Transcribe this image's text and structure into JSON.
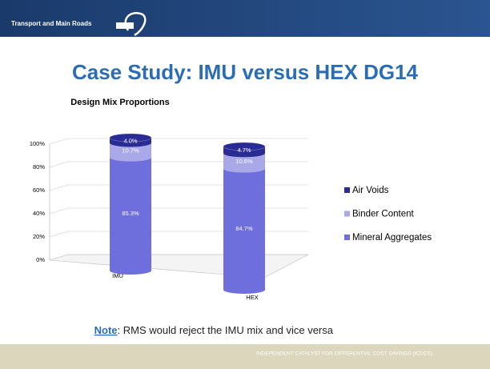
{
  "header": "Transport and Main Roads",
  "title": "Case Study: IMU versus HEX DG14",
  "chart_data": {
    "type": "stacked_cylinder",
    "title": "Design Mix Proportions",
    "categories": [
      "IMU",
      "HEX"
    ],
    "series": [
      {
        "name": "Mineral Aggregates",
        "color": "#6e6edc",
        "values": [
          85.3,
          84.7
        ],
        "value_labels": [
          "85.3%",
          "84.7%"
        ]
      },
      {
        "name": "Binder Content",
        "color": "#a9a9ea",
        "values": [
          10.7,
          10.6
        ],
        "value_labels": [
          "10.7%",
          "10.6%"
        ]
      },
      {
        "name": "Air Voids",
        "color": "#2b2b96",
        "values": [
          4,
          4.7
        ],
        "value_labels": [
          "4.0%",
          "4.7%"
        ]
      }
    ],
    "ylim": [
      0,
      100
    ],
    "yticks": [
      {
        "value": 0,
        "label": "0%"
      },
      {
        "value": 20,
        "label": "20%"
      },
      {
        "value": 40,
        "label": "40%"
      },
      {
        "value": 60,
        "label": "60%"
      },
      {
        "value": 80,
        "label": "80%"
      },
      {
        "value": 100,
        "label": "100%"
      }
    ],
    "grid": true,
    "legend": "right"
  },
  "note": {
    "label": "Note",
    "text": ": RMS would reject the IMU mix and vice versa"
  },
  "footer": "INDEPENDENT CATALYST FOR DIFFERENTIAL COST SAVINGS (ICDCS)"
}
